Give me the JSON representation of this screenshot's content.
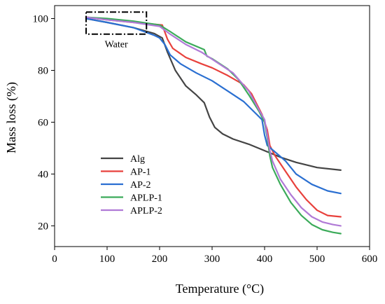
{
  "chart_data": {
    "type": "line",
    "xlabel": "Temperature (°C)",
    "ylabel": "Mass loss (%)",
    "xlim": [
      0,
      600
    ],
    "ylim": [
      12,
      105
    ],
    "xticks": [
      0,
      100,
      200,
      300,
      400,
      500,
      600
    ],
    "yticks": [
      20,
      40,
      60,
      80,
      100
    ],
    "grid": false,
    "legend_position": "bottom-left",
    "annotations": [
      {
        "text": "Water",
        "box_x": [
          60,
          175
        ],
        "box_y": [
          94,
          102.5
        ]
      }
    ],
    "series": [
      {
        "name": "Alg",
        "color": "#444444",
        "x": [
          60,
          100,
          150,
          190,
          205,
          215,
          230,
          250,
          270,
          285,
          295,
          305,
          320,
          340,
          370,
          400,
          430,
          460,
          500,
          545
        ],
        "y": [
          100,
          98.5,
          96.5,
          94.2,
          92.5,
          87,
          80,
          74,
          70.5,
          67.5,
          62,
          58,
          55.5,
          53.5,
          51.5,
          49,
          46.5,
          44.5,
          42.5,
          41.5
        ]
      },
      {
        "name": "AP-1",
        "color": "#e8413c",
        "x": [
          60,
          100,
          150,
          205,
          215,
          225,
          250,
          280,
          300,
          330,
          360,
          375,
          385,
          395,
          405,
          410,
          420,
          440,
          460,
          480,
          500,
          520,
          545
        ],
        "y": [
          100.5,
          99.5,
          98.5,
          97.5,
          92,
          88.5,
          85,
          82.5,
          81,
          78,
          74.5,
          71,
          67,
          63,
          57,
          51,
          47,
          41,
          35,
          30,
          26,
          24,
          23.5
        ]
      },
      {
        "name": "AP-2",
        "color": "#2a6fd1",
        "x": [
          60,
          100,
          150,
          190,
          200,
          210,
          220,
          240,
          270,
          300,
          330,
          360,
          385,
          395,
          400,
          405,
          420,
          440,
          460,
          490,
          520,
          545
        ],
        "y": [
          100,
          98.5,
          96.5,
          93.5,
          92.5,
          90,
          86,
          82.5,
          79,
          76,
          72,
          68,
          63,
          61,
          55,
          51,
          48.5,
          45,
          40,
          36,
          33.5,
          32.5
        ]
      },
      {
        "name": "APLP-1",
        "color": "#3cab5a",
        "x": [
          60,
          100,
          150,
          200,
          220,
          250,
          285,
          290,
          300,
          330,
          350,
          370,
          390,
          400,
          405,
          410,
          415,
          430,
          450,
          470,
          490,
          510,
          530,
          545
        ],
        "y": [
          100.5,
          100,
          99,
          97.5,
          95,
          91,
          88,
          85.5,
          84.5,
          80.5,
          76.5,
          70.5,
          64,
          60,
          54,
          47,
          42.5,
          36,
          29,
          24,
          20.5,
          18.5,
          17.5,
          17
        ]
      },
      {
        "name": "APLP-2",
        "color": "#b07ad6",
        "x": [
          60,
          100,
          150,
          200,
          220,
          250,
          280,
          310,
          340,
          370,
          390,
          400,
          405,
          410,
          415,
          430,
          450,
          470,
          490,
          510,
          530,
          545
        ],
        "y": [
          100.5,
          99.5,
          98.5,
          97,
          94,
          90,
          87,
          83,
          79,
          72,
          64.5,
          61,
          55,
          49,
          45,
          38,
          32,
          27,
          23.5,
          21.5,
          20.5,
          20
        ]
      }
    ]
  }
}
